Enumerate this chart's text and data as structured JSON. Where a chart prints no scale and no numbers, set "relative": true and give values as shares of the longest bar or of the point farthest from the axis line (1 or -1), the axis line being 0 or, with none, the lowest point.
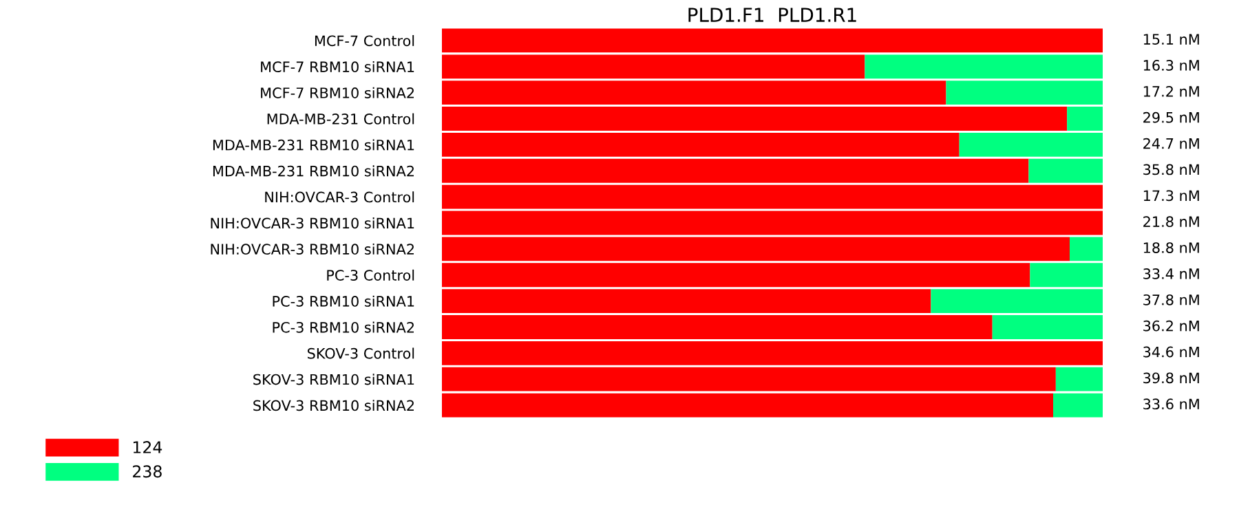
{
  "chart_data": {
    "type": "bar",
    "orientation": "horizontal",
    "stacked": true,
    "relative": true,
    "title": "PLD1.F1  PLD1.R1",
    "categories": [
      "MCF-7 Control",
      "MCF-7 RBM10 siRNA1",
      "MCF-7 RBM10 siRNA2",
      "MDA-MB-231 Control",
      "MDA-MB-231 RBM10 siRNA1",
      "MDA-MB-231 RBM10 siRNA2",
      "NIH:OVCAR-3 Control",
      "NIH:OVCAR-3 RBM10 siRNA1",
      "NIH:OVCAR-3 RBM10 siRNA2",
      "PC-3 Control",
      "PC-3 RBM10 siRNA1",
      "PC-3 RBM10 siRNA2",
      "SKOV-3 Control",
      "SKOV-3 RBM10 siRNA1",
      "SKOV-3 RBM10 siRNA2"
    ],
    "series": [
      {
        "name": "124",
        "color": "#ff0000",
        "values": [
          1.0,
          0.64,
          0.763,
          0.946,
          0.783,
          0.888,
          1.0,
          1.0,
          0.95,
          0.89,
          0.74,
          0.833,
          1.0,
          0.929,
          0.925
        ]
      },
      {
        "name": "238",
        "color": "#00ff80",
        "values": [
          0.0,
          0.36,
          0.237,
          0.054,
          0.217,
          0.112,
          0.0,
          0.0,
          0.05,
          0.11,
          0.26,
          0.167,
          0.0,
          0.071,
          0.075
        ]
      }
    ],
    "annotations": [
      "15.1 nM",
      "16.3 nM",
      "17.2 nM",
      "29.5 nM",
      "24.7 nM",
      "35.8 nM",
      "17.3 nM",
      "21.8 nM",
      "18.8 nM",
      "33.4 nM",
      "37.8 nM",
      "36.2 nM",
      "34.6 nM",
      "39.8 nM",
      "33.6 nM"
    ],
    "legend": "bottom left",
    "grid": false
  }
}
